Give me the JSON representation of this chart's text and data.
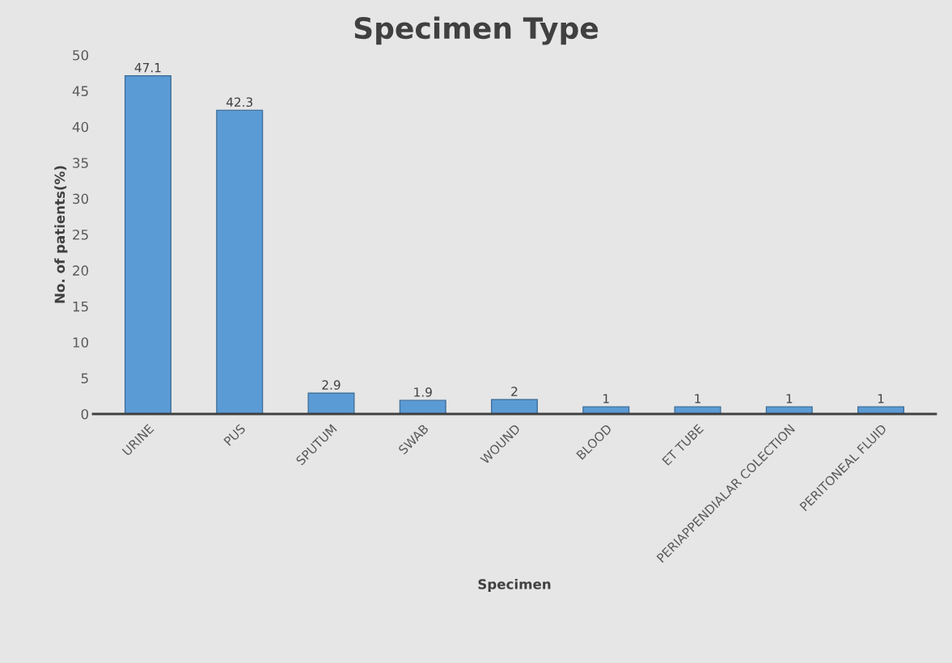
{
  "chart_data": {
    "type": "bar",
    "title": "Specimen Type",
    "xlabel": "Specimen",
    "ylabel": "No. of patients(%)",
    "categories": [
      "URINE",
      "PUS",
      "SPUTUM",
      "SWAB",
      "WOUND",
      "BLOOD",
      "ET TUBE",
      "PERIAPPENDIALAR COLECTION",
      "PERITONEAL FLUID"
    ],
    "values": [
      47.1,
      42.3,
      2.9,
      1.9,
      2,
      1,
      1,
      1,
      1
    ],
    "color": "#5b9bd5",
    "ylim": [
      0,
      50
    ],
    "yticks": [
      0,
      5,
      10,
      15,
      20,
      25,
      30,
      35,
      40,
      45,
      50
    ],
    "grid": false,
    "data_labels": true
  }
}
